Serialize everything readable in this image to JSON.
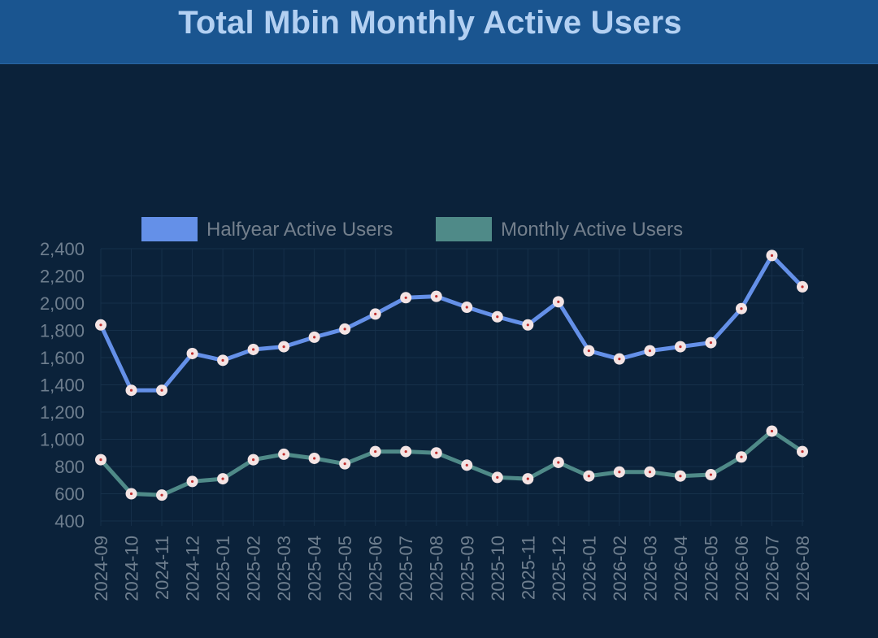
{
  "header": {
    "title": "Total Mbin Monthly Active Users"
  },
  "colors": {
    "background": "#0b223a",
    "header": "#1a5590",
    "title": "#b3d0f2",
    "halfyear_line": "#6490e8",
    "monthly_line": "#4f8a88",
    "point_fill": "#f4e4e4",
    "point_center": "#c03030",
    "axis_text": "#6f7f8f"
  },
  "chart_data": {
    "type": "line",
    "title": "Total Mbin Monthly Active Users",
    "xlabel": "",
    "ylabel": "",
    "ylim": [
      400,
      2400
    ],
    "yticks": [
      400,
      600,
      800,
      1000,
      1200,
      1400,
      1600,
      1800,
      2000,
      2200,
      2400
    ],
    "ytick_labels": [
      "400",
      "600",
      "800",
      "1,000",
      "1,200",
      "1,400",
      "1,600",
      "1,800",
      "2,000",
      "2,200",
      "2,400"
    ],
    "grid": true,
    "legend_position": "top-center",
    "x": [
      "2024-09",
      "2024-10",
      "2024-11",
      "2024-12",
      "2025-01",
      "2025-02",
      "2025-03",
      "2025-04",
      "2025-05",
      "2025-06",
      "2025-07",
      "2025-08",
      "2025-09",
      "2025-10",
      "2025-11",
      "2025-12",
      "2026-01",
      "2026-02",
      "2026-03",
      "2026-04",
      "2026-05",
      "2026-06",
      "2026-07",
      "2026-08"
    ],
    "series": [
      {
        "name": "Halfyear Active Users",
        "color": "#6490e8",
        "values": [
          1840,
          1360,
          1360,
          1630,
          1580,
          1660,
          1680,
          1750,
          1810,
          1920,
          2040,
          2050,
          1970,
          1900,
          1840,
          2010,
          1650,
          1590,
          1650,
          1680,
          1710,
          1960,
          2350,
          2120
        ]
      },
      {
        "name": "Monthly Active Users",
        "color": "#4f8a88",
        "values": [
          850,
          600,
          590,
          690,
          710,
          850,
          890,
          860,
          820,
          910,
          910,
          900,
          810,
          720,
          710,
          830,
          730,
          760,
          760,
          730,
          740,
          870,
          1060,
          910
        ]
      }
    ]
  }
}
